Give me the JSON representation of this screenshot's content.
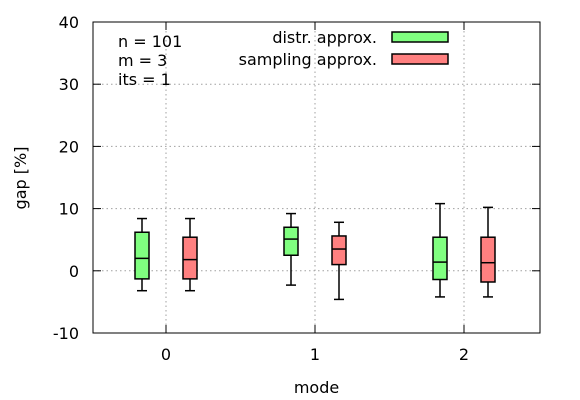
{
  "chart_data": {
    "type": "boxplot",
    "xlabel": "mode",
    "ylabel": "gap [%]",
    "ylim": [
      -10,
      40
    ],
    "yticks": [
      -10,
      0,
      10,
      20,
      30,
      40
    ],
    "categories": [
      "0",
      "1",
      "2"
    ],
    "grid": true,
    "legend_position": "top-right",
    "annotations": [
      "n = 101",
      "m = 3",
      "its = 1"
    ],
    "series": [
      {
        "name": "distr. approx.",
        "color": "#80ff80",
        "boxes": [
          {
            "category": "0",
            "min": -3.2,
            "q1": -1.3,
            "median": 2.0,
            "q3": 6.2,
            "max": 8.4
          },
          {
            "category": "1",
            "min": -2.3,
            "q1": 2.5,
            "median": 5.1,
            "q3": 7.0,
            "max": 9.2
          },
          {
            "category": "2",
            "min": -4.2,
            "q1": -1.4,
            "median": 1.4,
            "q3": 5.4,
            "max": 10.8
          }
        ]
      },
      {
        "name": "sampling approx.",
        "color": "#ff8080",
        "boxes": [
          {
            "category": "0",
            "min": -3.2,
            "q1": -1.3,
            "median": 1.8,
            "q3": 5.4,
            "max": 8.4
          },
          {
            "category": "1",
            "min": -4.6,
            "q1": 1.0,
            "median": 3.5,
            "q3": 5.6,
            "max": 7.8
          },
          {
            "category": "2",
            "min": -4.2,
            "q1": -1.8,
            "median": 1.3,
            "q3": 5.4,
            "max": 10.2
          }
        ]
      }
    ]
  }
}
